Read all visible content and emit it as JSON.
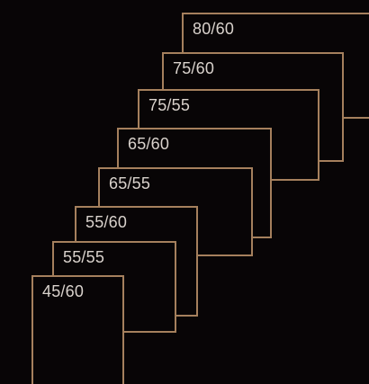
{
  "frames": [
    {
      "label": "80/60"
    },
    {
      "label": "75/60"
    },
    {
      "label": "75/55"
    },
    {
      "label": "65/60"
    },
    {
      "label": "65/55"
    },
    {
      "label": "55/60"
    },
    {
      "label": "55/55"
    },
    {
      "label": "45/60"
    }
  ],
  "colors": {
    "background": "#080506",
    "frame_border": "#a5805d",
    "label_text": "#d9d2cc"
  }
}
